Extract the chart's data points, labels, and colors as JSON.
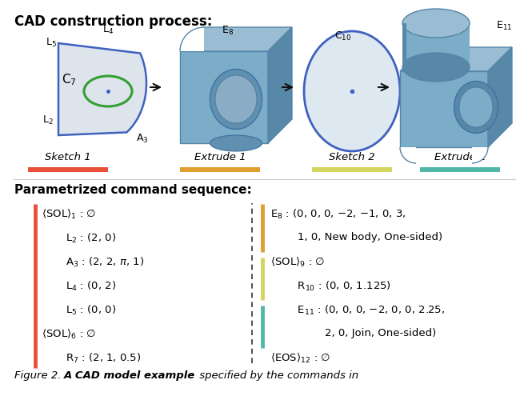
{
  "title_top": "CAD construction process:",
  "section2_title": "Parametrized command sequence:",
  "caption_prefix": "Figure 2. ",
  "caption_bold": "A CAD model example",
  "caption_suffix": " specified by the commands in",
  "underline_labels": [
    "Sketch 1",
    "Extrude 1",
    "Sketch 2",
    "Extrude 2"
  ],
  "underline_colors": [
    "#e8503a",
    "#e0a030",
    "#d4d460",
    "#50b8a8"
  ],
  "bg_color": "#ffffff",
  "font_size": 9.0,
  "left_bar_color": "#e8503a",
  "left_lines": [
    [
      "⟨SOL⟩$_1$ : ∅",
      0
    ],
    [
      "$\\mathrm{L}_2$ : (2, 0)",
      1
    ],
    [
      "$\\mathrm{A}_3$ : (2, 2, $\\pi$, 1)",
      1
    ],
    [
      "$\\mathrm{L}_4$ : (0, 2)",
      1
    ],
    [
      "$\\mathrm{L}_5$ : (0, 0)",
      1
    ],
    [
      "⟨SOL⟩$_6$ : ∅",
      0
    ],
    [
      "$\\mathrm{R}_7$ : (2, 1, 0.5)",
      1
    ]
  ],
  "right_lines": [
    [
      "$\\mathrm{E}_8$ : (0, 0, 0, −2, −1, 0, 3,",
      1,
      0
    ],
    [
      "        1, 0, New body, One-sided)",
      1,
      -1
    ],
    [
      "⟨SOL⟩$_9$ : ∅",
      0,
      1
    ],
    [
      "$\\mathrm{R}_{10}$ : (0, 0, 1.125)",
      1,
      -1
    ],
    [
      "$\\mathrm{E}_{11}$ : (0, 0, 0, −2, 0, 0, 2.25,",
      1,
      2
    ],
    [
      "        2, 0, Join, One-sided)",
      1,
      -1
    ],
    [
      "⟨EOS⟩$_{12}$ : ∅",
      0,
      -1
    ]
  ],
  "right_bars": [
    {
      "color": "#e0a030",
      "rows": [
        0,
        1
      ]
    },
    {
      "color": "#d4d460",
      "rows": [
        2,
        3
      ]
    },
    {
      "color": "#50b8a8",
      "rows": [
        4,
        5
      ]
    }
  ]
}
